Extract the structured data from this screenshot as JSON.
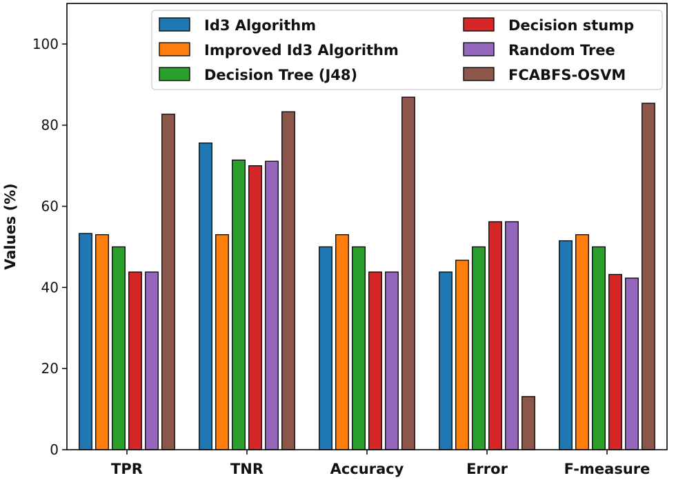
{
  "chart_data": {
    "type": "bar",
    "title": "",
    "xlabel": "",
    "ylabel": "Values (%)",
    "ylim": [
      0,
      110
    ],
    "yticks": [
      "0",
      "20",
      "40",
      "60",
      "80",
      "100"
    ],
    "grid": false,
    "legend_position": "top",
    "categories": [
      "TPR",
      "TNR",
      "Accuracy",
      "Error",
      "F-measure"
    ],
    "series": [
      {
        "name": "Id3 Algorithm",
        "color": "#1f77b4",
        "values": [
          53.3,
          75.6,
          50.0,
          43.8,
          51.5
        ]
      },
      {
        "name": "Improved Id3 Algorithm",
        "color": "#ff7f0e",
        "values": [
          53.0,
          53.0,
          53.0,
          46.7,
          53.0
        ]
      },
      {
        "name": "Decision Tree (J48)",
        "color": "#2ca02c",
        "values": [
          50.0,
          71.4,
          50.0,
          50.0,
          50.0
        ]
      },
      {
        "name": "Decision stump",
        "color": "#d62728",
        "values": [
          43.8,
          70.0,
          43.8,
          56.2,
          43.2
        ]
      },
      {
        "name": "Random Tree",
        "color": "#9467bd",
        "values": [
          43.8,
          71.1,
          43.8,
          56.2,
          42.3
        ]
      },
      {
        "name": "FCABFS-OSVM",
        "color": "#8c564b",
        "values": [
          82.7,
          83.3,
          86.9,
          13.1,
          85.4
        ]
      }
    ]
  }
}
